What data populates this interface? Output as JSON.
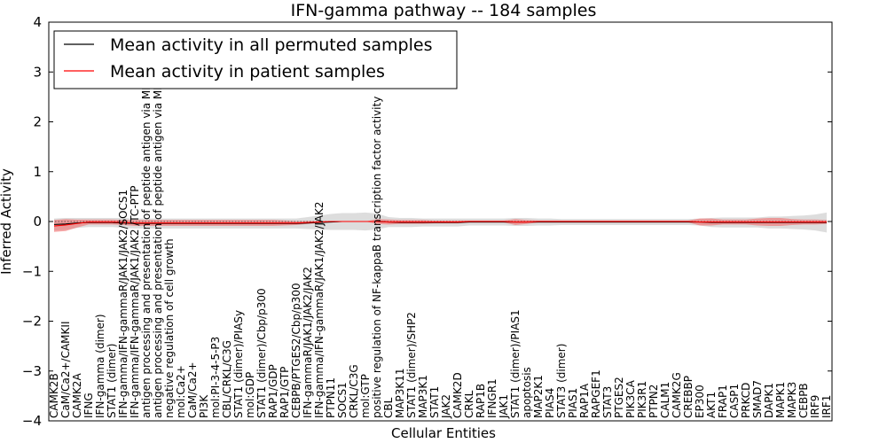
{
  "chart_data": {
    "type": "line",
    "title": "IFN-gamma pathway -- 184 samples",
    "xlabel": "Cellular Entities",
    "ylabel": "Inferred Activity",
    "ylim": [
      -4,
      4
    ],
    "yticks": [
      "4",
      "3",
      "2",
      "1",
      "0",
      "−1",
      "−2",
      "−3",
      "−4"
    ],
    "legend_position": "top-left",
    "categories": [
      "CAMK2B",
      "CaM/Ca2+/CAMKII",
      "CAMK2A",
      "IFNG",
      "IFN-gamma (dimer)",
      "STAT1 (dimer)",
      "IFN-gamma/IFN-gammaR/JAK1/JAK2/SOCS1",
      "IFN-gamma/IFN-gammaR/JAK1/JAK2 /TC-PTP",
      "antigen processing and presentation of peptide antigen via MHC class I",
      "antigen processing and presentation of peptide antigen via MHC class II",
      "negative regulation of cell growth",
      "mol:Ca2+",
      "CaM/Ca2+",
      "PI3K",
      "mol:PI-3-4-5-P3",
      "CBL/CRKL/C3G",
      "STAT1 (dimer)/PIASy",
      "mol:GDP",
      "STAT1 (dimer)/Cbp/p300",
      "RAP1/GDP",
      "RAP1/GTP",
      "CEBPB/PTGES2/Cbp/p300",
      "IFN-gammaR/JAK1/JAK2/JAK2",
      "IFN-gamma/IFN-gammaR/JAK1/JAK2/JAK2",
      "PTPN11",
      "SOCS1",
      "CRKL/C3G",
      "mol:GTP",
      "positive regulation of NF-kappaB transcription factor activity",
      "CBL",
      "MAP3K11",
      "STAT1 (dimer)/SHP2",
      "MAP3K1",
      "STAT1",
      "JAK2",
      "CAMK2D",
      "CRKL",
      "RAP1B",
      "IFNGR1",
      "JAK1",
      "STAT1 (dimer)/PIAS1",
      "apoptosis",
      "MAP2K1",
      "PIAS4",
      "STAT3 (dimer)",
      "PIAS1",
      "RAP1A",
      "RAPGEF1",
      "STAT3",
      "PTGES2",
      "PIK3CA",
      "PIK3R1",
      "PTPN2",
      "CALM1",
      "CAMK2G",
      "CREBBP",
      "EP300",
      "AKT1",
      "FRAP1",
      "CASP1",
      "PRKCD",
      "SMAD7",
      "DAPK1",
      "MAPK1",
      "MAPK3",
      "CEBPB",
      "IRF9",
      "IRF1"
    ],
    "series": [
      {
        "name": "Mean activity in all permuted samples",
        "color": "#000000",
        "band_color": "#bbbbbb",
        "values": [
          -0.06,
          -0.05,
          -0.03,
          -0.02,
          -0.02,
          -0.02,
          -0.03,
          -0.04,
          -0.04,
          -0.04,
          -0.04,
          -0.04,
          -0.04,
          -0.04,
          -0.04,
          -0.04,
          -0.04,
          -0.04,
          -0.04,
          -0.04,
          -0.04,
          -0.04,
          -0.03,
          -0.02,
          -0.01,
          0,
          0,
          0,
          0,
          -0.01,
          -0.02,
          -0.02,
          -0.02,
          -0.02,
          -0.02,
          -0.02,
          -0.01,
          -0.01,
          -0.01,
          -0.01,
          -0.01,
          -0.01,
          -0.01,
          -0.01,
          -0.01,
          -0.01,
          -0.01,
          -0.01,
          -0.01,
          -0.01,
          -0.01,
          -0.01,
          -0.01,
          -0.01,
          -0.01,
          -0.01,
          -0.01,
          -0.02,
          -0.02,
          -0.02,
          -0.02,
          -0.02,
          -0.02,
          -0.02,
          -0.02,
          -0.02,
          -0.02,
          -0.02
        ],
        "spread": [
          0.12,
          0.12,
          0.1,
          0.09,
          0.09,
          0.09,
          0.1,
          0.1,
          0.1,
          0.1,
          0.1,
          0.1,
          0.1,
          0.1,
          0.1,
          0.1,
          0.1,
          0.1,
          0.1,
          0.1,
          0.1,
          0.1,
          0.12,
          0.14,
          0.16,
          0.17,
          0.17,
          0.18,
          0.16,
          0.1,
          0.09,
          0.09,
          0.08,
          0.08,
          0.08,
          0.08,
          0.07,
          0.07,
          0.07,
          0.07,
          0.08,
          0.08,
          0.07,
          0.07,
          0.06,
          0.06,
          0.06,
          0.06,
          0.06,
          0.06,
          0.06,
          0.06,
          0.06,
          0.06,
          0.06,
          0.06,
          0.07,
          0.09,
          0.1,
          0.1,
          0.1,
          0.1,
          0.12,
          0.12,
          0.13,
          0.14,
          0.16,
          0.2
        ]
      },
      {
        "name": "Mean activity in patient samples",
        "color": "#ff0000",
        "band_color": "#f26d6d",
        "values": [
          -0.09,
          -0.07,
          -0.04,
          -0.01,
          -0.01,
          -0.01,
          -0.02,
          -0.03,
          -0.03,
          -0.03,
          -0.03,
          -0.03,
          -0.03,
          -0.03,
          -0.03,
          -0.03,
          -0.03,
          -0.03,
          -0.03,
          -0.03,
          -0.03,
          -0.03,
          -0.02,
          -0.01,
          0,
          0,
          0,
          0,
          0,
          -0.01,
          -0.01,
          -0.01,
          -0.01,
          -0.01,
          -0.01,
          -0.01,
          0,
          0,
          0,
          0,
          -0.01,
          -0.01,
          0,
          0,
          0,
          0,
          0,
          0,
          0,
          0,
          0,
          0,
          0,
          0,
          0,
          0,
          -0.01,
          -0.01,
          -0.01,
          -0.01,
          -0.01,
          -0.01,
          -0.01,
          -0.01,
          -0.01,
          -0.01,
          -0.01,
          -0.01
        ],
        "spread": [
          0.12,
          0.12,
          0.08,
          0.05,
          0.05,
          0.05,
          0.05,
          0.06,
          0.06,
          0.06,
          0.06,
          0.06,
          0.06,
          0.06,
          0.06,
          0.06,
          0.06,
          0.06,
          0.06,
          0.06,
          0.05,
          0.04,
          0.03,
          0.02,
          0.01,
          0,
          0,
          0,
          0.05,
          0.05,
          0.04,
          0.04,
          0.04,
          0.03,
          0.03,
          0.03,
          0.02,
          0.02,
          0.02,
          0.02,
          0.06,
          0.04,
          0.02,
          0.02,
          0.02,
          0.02,
          0.02,
          0.02,
          0.02,
          0.02,
          0.02,
          0.02,
          0.02,
          0.02,
          0.02,
          0.02,
          0.07,
          0.07,
          0.05,
          0.05,
          0.05,
          0.07,
          0.08,
          0.08,
          0.06,
          0.05,
          0.05,
          0.04
        ]
      }
    ]
  }
}
